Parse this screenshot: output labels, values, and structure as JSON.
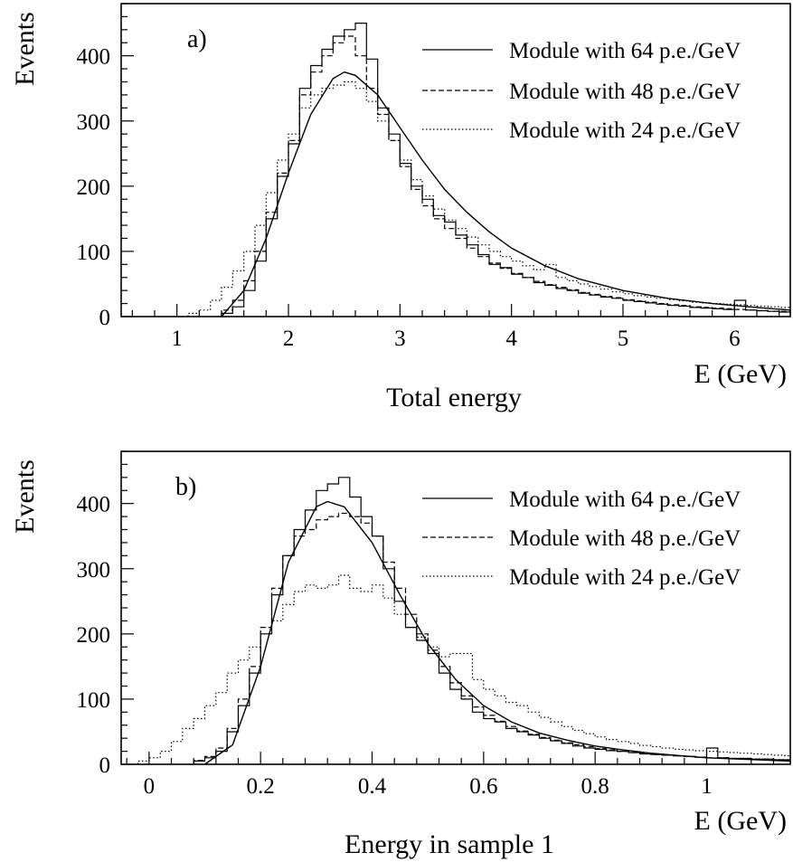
{
  "chart_data": [
    {
      "type": "histogram",
      "panel_label": "a)",
      "title": "Total energy",
      "xlabel": "E (GeV)",
      "ylabel": "Events",
      "xlim": [
        0.5,
        6.5
      ],
      "ylim": [
        0,
        480
      ],
      "xticks": [
        1,
        2,
        3,
        4,
        5,
        6
      ],
      "yticks": [
        0,
        100,
        200,
        300,
        400
      ],
      "grid": false,
      "legend_position": "top-right",
      "bin_width": 0.1,
      "series": [
        {
          "name": "Module with 64 p.e./GeV",
          "style": "solid",
          "kind": "histogram",
          "x": [
            1.45,
            1.55,
            1.65,
            1.75,
            1.85,
            1.95,
            2.05,
            2.15,
            2.25,
            2.35,
            2.45,
            2.55,
            2.65,
            2.75,
            2.85,
            2.95,
            3.05,
            3.15,
            3.25,
            3.35,
            3.45,
            3.55,
            3.65,
            3.75,
            3.85,
            3.95,
            4.05,
            4.15,
            4.25,
            4.35,
            4.45,
            4.55,
            4.65,
            4.75,
            4.85,
            4.95,
            5.05,
            5.15,
            5.25,
            5.35,
            5.45,
            5.55,
            5.65,
            5.75,
            5.85,
            5.95,
            6.05,
            6.15,
            6.25,
            6.35,
            6.45
          ],
          "y": [
            5,
            15,
            40,
            85,
            150,
            215,
            265,
            350,
            385,
            410,
            430,
            440,
            450,
            395,
            320,
            280,
            235,
            200,
            180,
            155,
            145,
            125,
            110,
            95,
            80,
            75,
            65,
            60,
            52,
            48,
            43,
            40,
            36,
            33,
            30,
            28,
            25,
            23,
            21,
            19,
            17,
            16,
            14,
            13,
            12,
            11,
            25,
            10,
            9,
            8,
            7
          ]
        },
        {
          "name": "Module with 48 p.e./GeV",
          "style": "dashed",
          "kind": "histogram",
          "x": [
            1.45,
            1.55,
            1.65,
            1.75,
            1.85,
            1.95,
            2.05,
            2.15,
            2.25,
            2.35,
            2.45,
            2.55,
            2.65,
            2.75,
            2.85,
            2.95,
            3.05,
            3.15,
            3.25,
            3.35,
            3.45,
            3.55,
            3.65,
            3.75,
            3.85,
            3.95,
            4.05,
            4.15,
            4.25,
            4.35,
            4.45,
            4.55,
            4.65,
            4.75,
            4.85,
            4.95,
            5.05,
            5.15,
            5.25,
            5.35,
            5.45,
            5.55,
            5.65,
            5.75,
            5.85,
            5.95,
            6.05,
            6.15,
            6.25,
            6.35,
            6.45
          ],
          "y": [
            10,
            25,
            55,
            100,
            160,
            220,
            270,
            340,
            375,
            400,
            420,
            430,
            400,
            350,
            310,
            270,
            230,
            195,
            170,
            150,
            135,
            120,
            105,
            92,
            82,
            74,
            66,
            60,
            54,
            49,
            45,
            41,
            37,
            34,
            31,
            29,
            26,
            24,
            22,
            20,
            18,
            17,
            15,
            14,
            13,
            12,
            11,
            10,
            9,
            8,
            8
          ]
        },
        {
          "name": "Module with 24 p.e./GeV",
          "style": "dotted",
          "kind": "histogram",
          "x": [
            1.15,
            1.25,
            1.35,
            1.45,
            1.55,
            1.65,
            1.75,
            1.85,
            1.95,
            2.05,
            2.15,
            2.25,
            2.35,
            2.45,
            2.55,
            2.65,
            2.75,
            2.85,
            2.95,
            3.05,
            3.15,
            3.25,
            3.35,
            3.45,
            3.55,
            3.65,
            3.75,
            3.85,
            3.95,
            4.05,
            4.15,
            4.25,
            4.35,
            4.45,
            4.55,
            4.65,
            4.75,
            4.85,
            4.95,
            5.05,
            5.15,
            5.25,
            5.35,
            5.45,
            5.55,
            5.65,
            5.75,
            5.85,
            5.95,
            6.05,
            6.15,
            6.25,
            6.35,
            6.45
          ],
          "y": [
            5,
            10,
            25,
            45,
            70,
            100,
            140,
            190,
            240,
            280,
            320,
            340,
            350,
            355,
            360,
            350,
            330,
            300,
            270,
            240,
            210,
            185,
            165,
            148,
            135,
            122,
            110,
            100,
            92,
            85,
            78,
            72,
            80,
            60,
            55,
            50,
            46,
            42,
            38,
            35,
            32,
            30,
            28,
            26,
            24,
            22,
            21,
            20,
            19,
            18,
            17,
            16,
            15,
            14
          ]
        },
        {
          "name": "Module with 64 p.e./GeV",
          "style": "solid",
          "kind": "fit",
          "x": [
            1.4,
            1.6,
            1.8,
            2.0,
            2.2,
            2.4,
            2.5,
            2.6,
            2.8,
            3.0,
            3.2,
            3.4,
            3.6,
            3.8,
            4.0,
            4.3,
            4.6,
            5.0,
            5.4,
            5.8,
            6.2,
            6.5
          ],
          "y": [
            0,
            40,
            120,
            220,
            310,
            365,
            375,
            370,
            340,
            290,
            240,
            195,
            160,
            130,
            105,
            78,
            58,
            40,
            28,
            20,
            14,
            10
          ]
        }
      ]
    },
    {
      "type": "histogram",
      "panel_label": "b)",
      "title": "Energy in sample 1",
      "xlabel": "E (GeV)",
      "ylabel": "Events",
      "xlim": [
        -0.05,
        1.15
      ],
      "ylim": [
        0,
        480
      ],
      "xticks": [
        0,
        0.2,
        0.4,
        0.6,
        0.8,
        1
      ],
      "yticks": [
        0,
        100,
        200,
        300,
        400
      ],
      "grid": false,
      "legend_position": "top-right",
      "bin_width": 0.02,
      "series": [
        {
          "name": "Module with 64 p.e./GeV",
          "style": "solid",
          "kind": "histogram",
          "x": [
            0.09,
            0.11,
            0.13,
            0.15,
            0.17,
            0.19,
            0.21,
            0.23,
            0.25,
            0.27,
            0.29,
            0.31,
            0.33,
            0.35,
            0.37,
            0.39,
            0.41,
            0.43,
            0.45,
            0.47,
            0.49,
            0.51,
            0.53,
            0.55,
            0.57,
            0.59,
            0.61,
            0.63,
            0.65,
            0.67,
            0.69,
            0.71,
            0.73,
            0.75,
            0.77,
            0.79,
            0.81,
            0.83,
            0.85,
            0.87,
            0.89,
            0.91,
            0.93,
            0.95,
            0.97,
            0.99,
            1.01,
            1.03,
            1.05,
            1.07,
            1.09,
            1.11,
            1.13,
            1.15
          ],
          "y": [
            5,
            10,
            20,
            50,
            90,
            140,
            200,
            260,
            320,
            360,
            390,
            420,
            430,
            440,
            410,
            380,
            350,
            300,
            250,
            210,
            190,
            170,
            140,
            115,
            100,
            80,
            70,
            65,
            55,
            50,
            45,
            40,
            36,
            32,
            28,
            25,
            23,
            21,
            20,
            18,
            16,
            15,
            14,
            13,
            12,
            11,
            25,
            10,
            9,
            9,
            8,
            8,
            7,
            7
          ]
        },
        {
          "name": "Module with 48 p.e./GeV",
          "style": "dashed",
          "kind": "histogram",
          "x": [
            0.09,
            0.11,
            0.13,
            0.15,
            0.17,
            0.19,
            0.21,
            0.23,
            0.25,
            0.27,
            0.29,
            0.31,
            0.33,
            0.35,
            0.37,
            0.39,
            0.41,
            0.43,
            0.45,
            0.47,
            0.49,
            0.51,
            0.53,
            0.55,
            0.57,
            0.59,
            0.61,
            0.63,
            0.65,
            0.67,
            0.69,
            0.71,
            0.73,
            0.75,
            0.77,
            0.79,
            0.81,
            0.83,
            0.85,
            0.87,
            0.89,
            0.91,
            0.93,
            0.95,
            0.97,
            0.99,
            1.01,
            1.03,
            1.05,
            1.07,
            1.09,
            1.11,
            1.13,
            1.15
          ],
          "y": [
            6,
            12,
            25,
            55,
            100,
            150,
            210,
            270,
            320,
            350,
            360,
            375,
            380,
            385,
            380,
            370,
            350,
            310,
            270,
            230,
            200,
            175,
            150,
            125,
            105,
            88,
            75,
            66,
            58,
            51,
            46,
            41,
            37,
            33,
            30,
            27,
            24,
            22,
            20,
            18,
            17,
            15,
            14,
            13,
            12,
            11,
            10,
            10,
            9,
            9,
            8,
            8,
            7,
            7
          ]
        },
        {
          "name": "Module with 24 p.e./GeV",
          "style": "dotted",
          "kind": "histogram",
          "x": [
            -0.01,
            0.01,
            0.03,
            0.05,
            0.07,
            0.09,
            0.11,
            0.13,
            0.15,
            0.17,
            0.19,
            0.21,
            0.23,
            0.25,
            0.27,
            0.29,
            0.31,
            0.33,
            0.35,
            0.37,
            0.39,
            0.41,
            0.43,
            0.45,
            0.47,
            0.49,
            0.51,
            0.53,
            0.55,
            0.57,
            0.59,
            0.61,
            0.63,
            0.65,
            0.67,
            0.69,
            0.71,
            0.73,
            0.75,
            0.77,
            0.79,
            0.81,
            0.83,
            0.85,
            0.87,
            0.89,
            0.91,
            0.93,
            0.95,
            0.97,
            0.99,
            1.01,
            1.03,
            1.05,
            1.07,
            1.09,
            1.11,
            1.13,
            1.15
          ],
          "y": [
            5,
            10,
            20,
            35,
            55,
            70,
            90,
            110,
            140,
            160,
            180,
            200,
            220,
            245,
            265,
            275,
            270,
            275,
            290,
            270,
            265,
            275,
            255,
            230,
            210,
            195,
            180,
            165,
            170,
            170,
            130,
            115,
            105,
            95,
            90,
            80,
            72,
            65,
            58,
            52,
            47,
            42,
            38,
            35,
            32,
            29,
            27,
            25,
            23,
            22,
            21,
            20,
            19,
            18,
            17,
            16,
            15,
            14,
            13
          ]
        },
        {
          "name": "Module with 64 p.e./GeV",
          "style": "solid",
          "kind": "fit",
          "x": [
            0.1,
            0.15,
            0.2,
            0.25,
            0.3,
            0.32,
            0.35,
            0.4,
            0.45,
            0.5,
            0.55,
            0.6,
            0.65,
            0.7,
            0.75,
            0.8,
            0.85,
            0.9,
            1.0,
            1.15
          ],
          "y": [
            0,
            30,
            150,
            310,
            395,
            403,
            395,
            340,
            260,
            185,
            130,
            90,
            65,
            48,
            37,
            28,
            22,
            17,
            10,
            5
          ]
        }
      ]
    }
  ]
}
